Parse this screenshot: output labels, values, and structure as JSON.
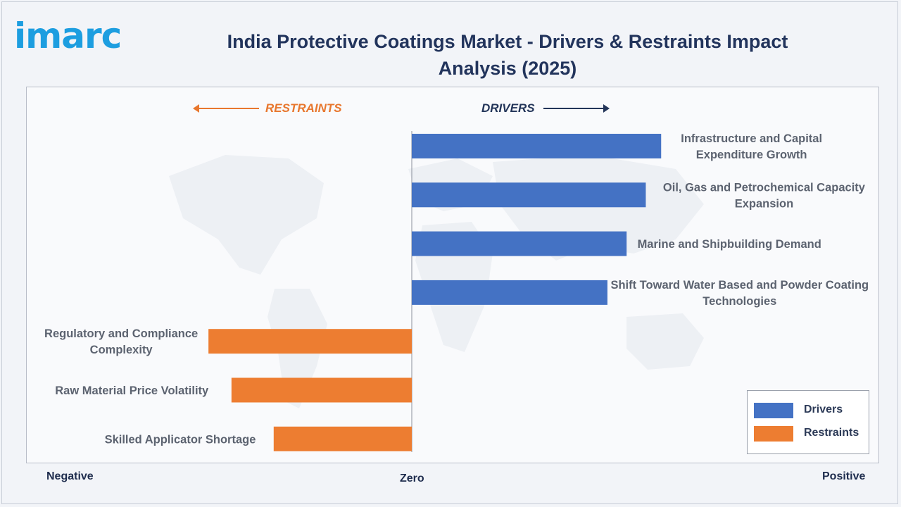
{
  "logo": {
    "text": "imarc"
  },
  "title": "India Protective Coatings Market - Drivers & Restraints Impact Analysis (2025)",
  "headers": {
    "restraints": "RESTRAINTS",
    "drivers": "DRIVERS"
  },
  "axis": {
    "negative": "Negative",
    "zero": "Zero",
    "positive": "Positive"
  },
  "colors": {
    "drivers": "#4472c4",
    "restraints": "#ed7d31",
    "title": "#22345c",
    "logo": "#1d9ee0"
  },
  "legend": {
    "placement": "bottom-right",
    "items": [
      {
        "label": "Drivers",
        "color": "#4472c4"
      },
      {
        "label": "Restraints",
        "color": "#ed7d31"
      }
    ]
  },
  "chart_data": {
    "type": "bar",
    "orientation": "horizontal",
    "title": "India Protective Coatings Market - Drivers & Restraints Impact Analysis (2025)",
    "xlim": [
      -1,
      1
    ],
    "grid": false,
    "series": [
      {
        "name": "Drivers",
        "categories": [
          [
            "Infrastructure and Capital",
            "Expenditure Growth"
          ],
          [
            "Oil, Gas and Petrochemical Capacity",
            "Expansion"
          ],
          [
            "Marine and Shipbuilding Demand"
          ],
          [
            "Shift Toward Water Based and Powder Coating",
            "Technologies"
          ]
        ],
        "values": [
          0.65,
          0.61,
          0.56,
          0.51
        ]
      },
      {
        "name": "Restraints",
        "categories": [
          [
            "Regulatory and Compliance",
            "Complexity"
          ],
          [
            "Raw Material Price Volatility"
          ],
          [
            "Skilled Applicator Shortage"
          ]
        ],
        "values": [
          -0.53,
          -0.47,
          -0.36
        ]
      }
    ]
  }
}
